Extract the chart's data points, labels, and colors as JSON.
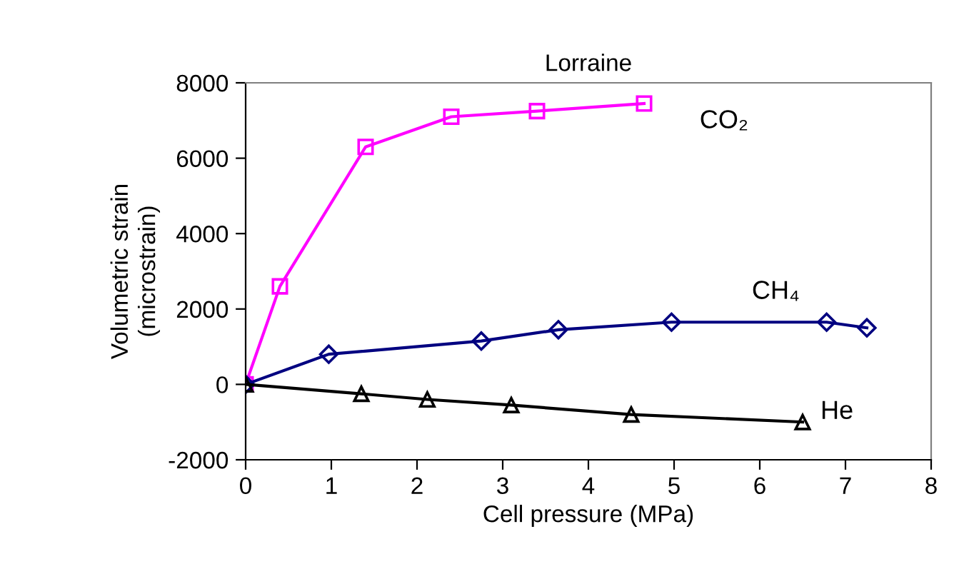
{
  "chart_data": {
    "type": "line",
    "title": "Lorraine",
    "xlabel": "Cell pressure (MPa)",
    "ylabel": "Volumetric strain\n(microstrain)",
    "xlim": [
      0,
      8
    ],
    "xticks": [
      0,
      1,
      2,
      3,
      4,
      5,
      6,
      7,
      8
    ],
    "ylim": [
      -2000,
      8000
    ],
    "yticks": [
      -2000,
      0,
      2000,
      4000,
      6000,
      8000
    ],
    "grid": false,
    "legend": false,
    "series": [
      {
        "name": "CO₂",
        "color": "#ff00ff",
        "marker": "square",
        "x": [
          0,
          0.4,
          1.4,
          2.4,
          3.4,
          4.65
        ],
        "values": [
          0,
          2600,
          6300,
          7100,
          7250,
          7450
        ]
      },
      {
        "name": "CH₄",
        "color": "#000080",
        "marker": "diamond",
        "x": [
          0,
          0.97,
          2.75,
          3.65,
          4.97,
          6.78,
          7.25
        ],
        "values": [
          0,
          800,
          1150,
          1450,
          1650,
          1650,
          1500
        ]
      },
      {
        "name": "He",
        "color": "#000000",
        "marker": "triangle",
        "x": [
          0,
          1.35,
          2.12,
          3.1,
          4.5,
          6.5
        ],
        "values": [
          0,
          -250,
          -400,
          -550,
          -800,
          -1000
        ]
      }
    ]
  }
}
